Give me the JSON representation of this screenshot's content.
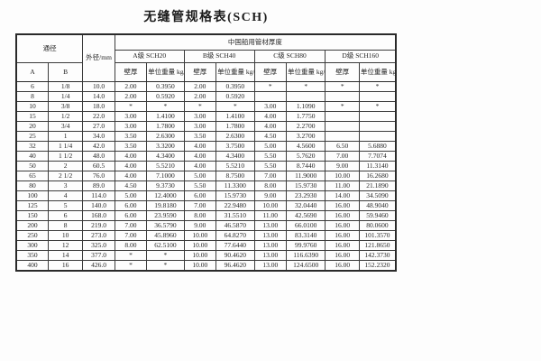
{
  "title": "无缝管规格表(SCH)",
  "table": {
    "header": {
      "tongjing": "通径",
      "col_a": "A",
      "col_b": "B",
      "waijing": "外径/mm",
      "group": "中国船用管材厚度",
      "grades": [
        {
          "label": "A级 SCH20"
        },
        {
          "label": "B级 SCH40"
        },
        {
          "label": "C级 SCH80"
        },
        {
          "label": "D级 SCH160"
        }
      ],
      "wall": "壁厚",
      "weight": "单位重量\nkg/m"
    },
    "rows": [
      [
        "6",
        "1/8",
        "10.0",
        "2.00",
        "0.3950",
        "2.00",
        "0.3950",
        "*",
        "*",
        "*",
        "*"
      ],
      [
        "8",
        "1/4",
        "14.0",
        "2.00",
        "0.5920",
        "2.00",
        "0.5920",
        "",
        "",
        "",
        ""
      ],
      [
        "10",
        "3/8",
        "18.0",
        "*",
        "*",
        "*",
        "*",
        "3.00",
        "1.1090",
        "*",
        "*"
      ],
      [
        "15",
        "1/2",
        "22.0",
        "3.00",
        "1.4100",
        "3.00",
        "1.4100",
        "4.00",
        "1.7750",
        "",
        ""
      ],
      [
        "20",
        "3/4",
        "27.0",
        "3.00",
        "1.7800",
        "3.00",
        "1.7800",
        "4.00",
        "2.2700",
        "",
        ""
      ],
      [
        "25",
        "1",
        "34.0",
        "3.50",
        "2.6300",
        "3.50",
        "2.6300",
        "4.50",
        "3.2700",
        "",
        ""
      ],
      [
        "32",
        "1 1/4",
        "42.0",
        "3.50",
        "3.3200",
        "4.00",
        "3.7500",
        "5.00",
        "4.5600",
        "6.50",
        "5.6880"
      ],
      [
        "40",
        "1 1/2",
        "48.0",
        "4.00",
        "4.3400",
        "4.00",
        "4.3400",
        "5.50",
        "5.7620",
        "7.00",
        "7.7074"
      ],
      [
        "50",
        "2",
        "60.5",
        "4.00",
        "5.5210",
        "4.00",
        "5.5210",
        "5.50",
        "8.7440",
        "9.00",
        "11.3140"
      ],
      [
        "65",
        "2 1/2",
        "76.0",
        "4.00",
        "7.1000",
        "5.00",
        "8.7500",
        "7.00",
        "11.9000",
        "10.00",
        "16.2680"
      ],
      [
        "80",
        "3",
        "89.0",
        "4.50",
        "9.3730",
        "5.50",
        "11.3300",
        "8.00",
        "15.9730",
        "11.00",
        "21.1890"
      ],
      [
        "100",
        "4",
        "114.0",
        "5.00",
        "12.4000",
        "6.00",
        "15.9730",
        "9.00",
        "23.2930",
        "14.00",
        "34.5090"
      ],
      [
        "125",
        "5",
        "140.0",
        "6.00",
        "19.8180",
        "7.00",
        "22.9480",
        "10.00",
        "32.0440",
        "16.00",
        "48.9040"
      ],
      [
        "150",
        "6",
        "168.0",
        "6.00",
        "23.9590",
        "8.00",
        "31.5510",
        "11.00",
        "42.5690",
        "16.00",
        "59.9460"
      ],
      [
        "200",
        "8",
        "219.0",
        "7.00",
        "36.5790",
        "9.00",
        "46.5870",
        "13.00",
        "66.0100",
        "16.00",
        "80.0600"
      ],
      [
        "250",
        "10",
        "273.0",
        "7.00",
        "45.8960",
        "10.00",
        "64.8270",
        "13.00",
        "83.3140",
        "16.00",
        "101.3570"
      ],
      [
        "300",
        "12",
        "325.0",
        "8.00",
        "62.5100",
        "10.00",
        "77.6440",
        "13.00",
        "99.9760",
        "16.00",
        "121.8650"
      ],
      [
        "350",
        "14",
        "377.0",
        "*",
        "*",
        "10.00",
        "90.4620",
        "13.00",
        "116.6390",
        "16.00",
        "142.3730"
      ],
      [
        "400",
        "16",
        "426.0",
        "*",
        "*",
        "10.00",
        "96.4620",
        "13.00",
        "124.6500",
        "16.00",
        "152.2320"
      ]
    ]
  }
}
